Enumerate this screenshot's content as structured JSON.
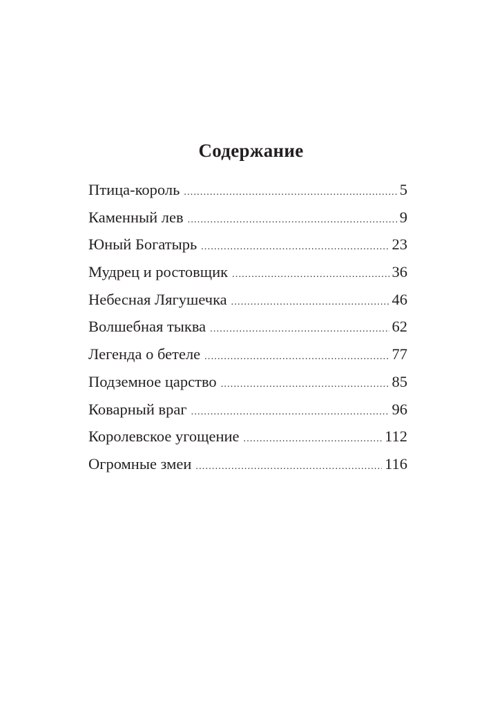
{
  "title": "Содержание",
  "entries": [
    {
      "title": "Птица-король",
      "page": "5"
    },
    {
      "title": "Каменный лев",
      "page": "9"
    },
    {
      "title": "Юный Богатырь",
      "page": "23"
    },
    {
      "title": "Мудрец и ростовщик",
      "page": "36"
    },
    {
      "title": "Небесная Лягушечка",
      "page": "46"
    },
    {
      "title": "Волшебная тыква",
      "page": "62"
    },
    {
      "title": "Легенда о бетеле",
      "page": "77"
    },
    {
      "title": "Подземное царство",
      "page": "85"
    },
    {
      "title": "Коварный враг",
      "page": "96"
    },
    {
      "title": "Королевское угощение",
      "page": "112"
    },
    {
      "title": "Огромные змеи",
      "page": "116"
    }
  ]
}
